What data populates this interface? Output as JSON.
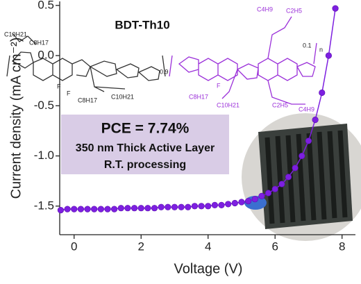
{
  "chart_data": {
    "type": "line",
    "xlabel": "Voltage (V)",
    "ylabel": "Current density (mA cm⁻²)",
    "x": [
      -0.4,
      -0.2,
      0,
      0.2,
      0.4,
      0.6,
      0.8,
      1.0,
      1.2,
      1.4,
      1.6,
      1.8,
      2.0,
      2.2,
      2.4,
      2.6,
      2.8,
      3.0,
      3.2,
      3.4,
      3.6,
      3.8,
      4.0,
      4.2,
      4.4,
      4.6,
      4.8,
      5.0,
      5.2,
      5.4,
      5.6,
      5.8,
      6.0,
      6.2,
      6.4,
      6.6,
      6.8,
      7.0,
      7.2,
      7.4,
      7.6,
      7.8
    ],
    "series": [
      {
        "color": "#7d1fe0",
        "values": [
          -1.54,
          -1.53,
          -1.53,
          -1.53,
          -1.53,
          -1.53,
          -1.53,
          -1.53,
          -1.53,
          -1.52,
          -1.52,
          -1.52,
          -1.52,
          -1.52,
          -1.52,
          -1.51,
          -1.51,
          -1.51,
          -1.51,
          -1.51,
          -1.5,
          -1.5,
          -1.5,
          -1.49,
          -1.49,
          -1.48,
          -1.47,
          -1.46,
          -1.45,
          -1.43,
          -1.4,
          -1.37,
          -1.33,
          -1.28,
          -1.21,
          -1.12,
          -1.0,
          -0.85,
          -0.64,
          -0.37,
          0.0,
          0.47
        ]
      }
    ],
    "xlim": [
      -0.43,
      8.4
    ],
    "ylim": [
      -1.785,
      0.54
    ],
    "xticks": [
      0,
      2,
      4,
      6,
      8
    ],
    "yticks": [
      0.5,
      {
        "value": 0,
        "label": "0.0"
      },
      -0.5,
      {
        "value": -1,
        "label": "-1.0"
      },
      -1.5
    ],
    "annotations": [
      "PCE = 7.74%",
      "350 nm Thick Active Layer",
      "R.T. processing"
    ]
  },
  "structure": {
    "title": "BDT-Th10",
    "labels": [
      "C10H21",
      "C8H17",
      "F",
      "F",
      "C8H17",
      "C10H21",
      "0.9",
      "C4H9",
      "C2H5",
      "F",
      "C8H17",
      "C10H21",
      "C2H5",
      "C4H9",
      "0.1",
      "n"
    ]
  }
}
